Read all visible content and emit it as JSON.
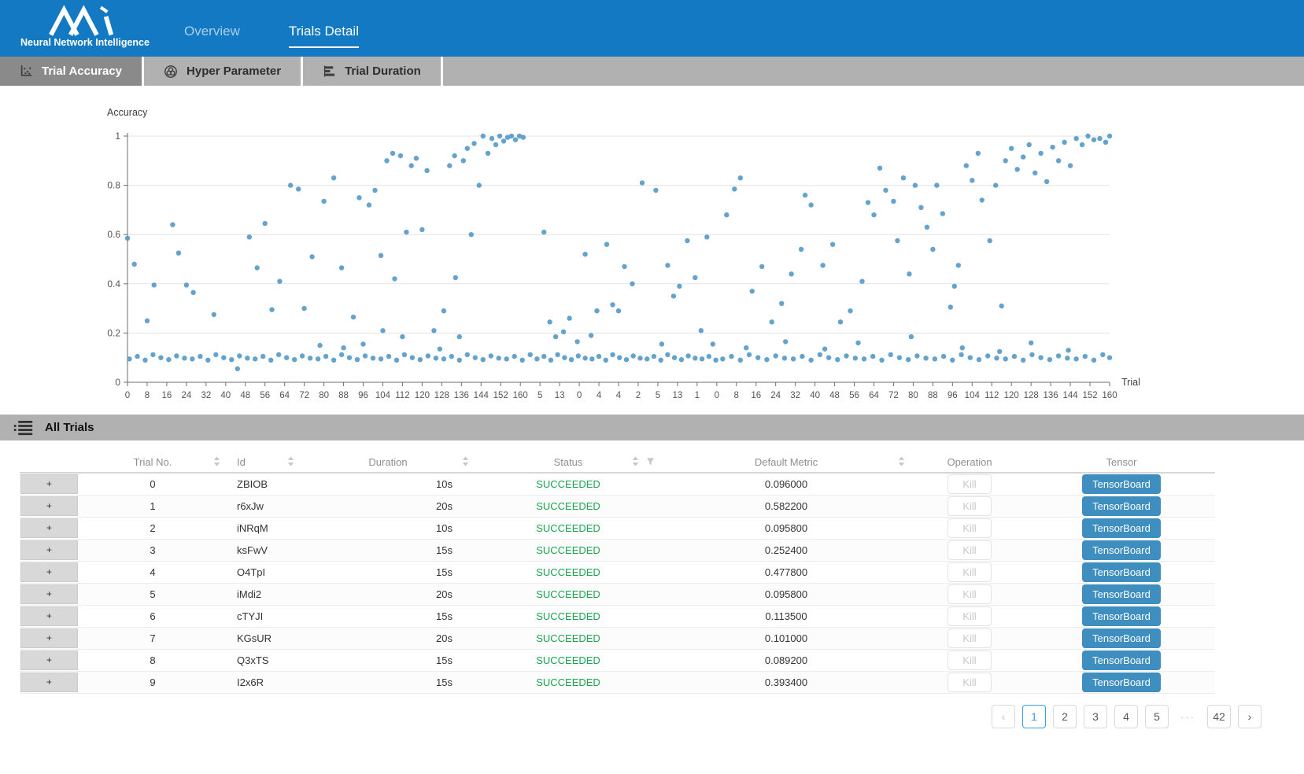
{
  "colors": {
    "header_blue": "#1379C2",
    "subtab_gray": "#B1B1B1",
    "subtab_active_gray": "#8A8A8A",
    "point_blue": "#4D96C7",
    "success_green": "#1CA34F",
    "tensorboard_blue": "#3E8EC0",
    "pagination_active_blue": "#3D9BE9"
  },
  "header": {
    "brand_caption": "Neural Network Intelligence",
    "tabs": [
      {
        "label": "Overview",
        "active": false
      },
      {
        "label": "Trials Detail",
        "active": true
      }
    ]
  },
  "subtabs": [
    {
      "label": "Trial Accuracy",
      "icon": "scatter-icon",
      "active": true
    },
    {
      "label": "Hyper Parameter",
      "icon": "wheel-icon",
      "active": false
    },
    {
      "label": "Trial Duration",
      "icon": "bar-chart-icon",
      "active": false
    }
  ],
  "chart_data": {
    "type": "scatter",
    "ylabel": "Accuracy",
    "xlabel": "Trial",
    "ylim": [
      0,
      1
    ],
    "grid": true,
    "y_ticks": [
      "0",
      "0.2",
      "0.4",
      "0.6",
      "0.8",
      "1"
    ],
    "x_tick_labels": [
      "0",
      "8",
      "16",
      "24",
      "32",
      "40",
      "48",
      "56",
      "64",
      "72",
      "80",
      "88",
      "96",
      "104",
      "112",
      "120",
      "128",
      "136",
      "144",
      "152",
      "160",
      "5",
      "13",
      "0",
      "4",
      "4",
      "2",
      "5",
      "13",
      "1",
      "0",
      "8",
      "16",
      "24",
      "32",
      "40",
      "48",
      "56",
      "64",
      "72",
      "80",
      "88",
      "96",
      "104",
      "112",
      "120",
      "128",
      "136",
      "144",
      "152",
      "160"
    ],
    "point_color": "#4D96C7",
    "points": [
      [
        0.1,
        0.095
      ],
      [
        0.5,
        0.105
      ],
      [
        0.9,
        0.09
      ],
      [
        1.3,
        0.112
      ],
      [
        1.7,
        0.1
      ],
      [
        2.1,
        0.092
      ],
      [
        2.5,
        0.107
      ],
      [
        2.9,
        0.098
      ],
      [
        3.3,
        0.095
      ],
      [
        3.7,
        0.105
      ],
      [
        4.1,
        0.09
      ],
      [
        4.5,
        0.112
      ],
      [
        4.9,
        0.1
      ],
      [
        5.3,
        0.092
      ],
      [
        5.7,
        0.107
      ],
      [
        6.1,
        0.098
      ],
      [
        6.5,
        0.095
      ],
      [
        6.9,
        0.105
      ],
      [
        7.3,
        0.09
      ],
      [
        7.7,
        0.112
      ],
      [
        8.1,
        0.1
      ],
      [
        8.5,
        0.092
      ],
      [
        8.9,
        0.107
      ],
      [
        9.3,
        0.098
      ],
      [
        9.7,
        0.095
      ],
      [
        10.1,
        0.105
      ],
      [
        10.5,
        0.09
      ],
      [
        10.9,
        0.112
      ],
      [
        11.3,
        0.1
      ],
      [
        11.7,
        0.092
      ],
      [
        12.1,
        0.107
      ],
      [
        12.5,
        0.098
      ],
      [
        12.9,
        0.095
      ],
      [
        13.3,
        0.105
      ],
      [
        13.7,
        0.09
      ],
      [
        14.1,
        0.112
      ],
      [
        14.5,
        0.1
      ],
      [
        14.9,
        0.092
      ],
      [
        15.3,
        0.107
      ],
      [
        15.7,
        0.098
      ],
      [
        16.1,
        0.095
      ],
      [
        16.5,
        0.105
      ],
      [
        16.9,
        0.09
      ],
      [
        17.3,
        0.112
      ],
      [
        17.7,
        0.1
      ],
      [
        18.1,
        0.092
      ],
      [
        18.5,
        0.107
      ],
      [
        18.9,
        0.098
      ],
      [
        19.3,
        0.095
      ],
      [
        19.7,
        0.105
      ],
      [
        20.1,
        0.09
      ],
      [
        20.5,
        0.112
      ],
      [
        20.85,
        0.095
      ],
      [
        21.2,
        0.105
      ],
      [
        21.55,
        0.09
      ],
      [
        21.9,
        0.112
      ],
      [
        22.25,
        0.1
      ],
      [
        22.6,
        0.092
      ],
      [
        22.95,
        0.107
      ],
      [
        23.3,
        0.098
      ],
      [
        23.65,
        0.095
      ],
      [
        24.0,
        0.105
      ],
      [
        24.35,
        0.09
      ],
      [
        24.7,
        0.112
      ],
      [
        25.05,
        0.1
      ],
      [
        25.4,
        0.092
      ],
      [
        25.75,
        0.107
      ],
      [
        26.1,
        0.098
      ],
      [
        26.45,
        0.095
      ],
      [
        26.8,
        0.105
      ],
      [
        27.15,
        0.09
      ],
      [
        27.5,
        0.112
      ],
      [
        27.85,
        0.1
      ],
      [
        28.2,
        0.092
      ],
      [
        28.55,
        0.107
      ],
      [
        28.9,
        0.098
      ],
      [
        29.25,
        0.095
      ],
      [
        29.6,
        0.105
      ],
      [
        29.95,
        0.09
      ],
      [
        30.3,
        0.095
      ],
      [
        30.75,
        0.105
      ],
      [
        31.2,
        0.09
      ],
      [
        31.65,
        0.112
      ],
      [
        32.1,
        0.1
      ],
      [
        32.55,
        0.092
      ],
      [
        33.0,
        0.107
      ],
      [
        33.45,
        0.098
      ],
      [
        33.9,
        0.095
      ],
      [
        34.35,
        0.105
      ],
      [
        34.8,
        0.09
      ],
      [
        35.25,
        0.112
      ],
      [
        35.7,
        0.1
      ],
      [
        36.15,
        0.092
      ],
      [
        36.6,
        0.107
      ],
      [
        37.05,
        0.098
      ],
      [
        37.5,
        0.095
      ],
      [
        37.95,
        0.105
      ],
      [
        38.4,
        0.09
      ],
      [
        38.85,
        0.112
      ],
      [
        39.3,
        0.1
      ],
      [
        39.75,
        0.092
      ],
      [
        40.2,
        0.107
      ],
      [
        40.65,
        0.098
      ],
      [
        41.1,
        0.095
      ],
      [
        41.55,
        0.105
      ],
      [
        42.0,
        0.09
      ],
      [
        42.45,
        0.112
      ],
      [
        42.9,
        0.1
      ],
      [
        43.35,
        0.092
      ],
      [
        43.8,
        0.107
      ],
      [
        44.25,
        0.098
      ],
      [
        44.7,
        0.095
      ],
      [
        45.15,
        0.105
      ],
      [
        45.6,
        0.09
      ],
      [
        46.05,
        0.112
      ],
      [
        46.5,
        0.1
      ],
      [
        46.95,
        0.092
      ],
      [
        47.4,
        0.107
      ],
      [
        47.85,
        0.098
      ],
      [
        48.3,
        0.095
      ],
      [
        48.75,
        0.105
      ],
      [
        49.2,
        0.09
      ],
      [
        49.65,
        0.112
      ],
      [
        50.0,
        0.1
      ],
      [
        0.0,
        0.585
      ],
      [
        0.35,
        0.48
      ],
      [
        1.0,
        0.25
      ],
      [
        1.35,
        0.395
      ],
      [
        2.3,
        0.64
      ],
      [
        2.6,
        0.525
      ],
      [
        3.0,
        0.395
      ],
      [
        3.35,
        0.365
      ],
      [
        4.4,
        0.275
      ],
      [
        5.6,
        0.055
      ],
      [
        6.2,
        0.59
      ],
      [
        6.6,
        0.465
      ],
      [
        7.0,
        0.645
      ],
      [
        7.35,
        0.295
      ],
      [
        7.75,
        0.41
      ],
      [
        8.3,
        0.8
      ],
      [
        8.7,
        0.785
      ],
      [
        9.0,
        0.3
      ],
      [
        9.4,
        0.51
      ],
      [
        9.8,
        0.15
      ],
      [
        10.0,
        0.735
      ],
      [
        10.5,
        0.83
      ],
      [
        10.9,
        0.465
      ],
      [
        11.0,
        0.14
      ],
      [
        11.5,
        0.265
      ],
      [
        11.8,
        0.75
      ],
      [
        12.0,
        0.155
      ],
      [
        12.3,
        0.72
      ],
      [
        12.6,
        0.78
      ],
      [
        12.9,
        0.515
      ],
      [
        13.0,
        0.21
      ],
      [
        13.2,
        0.9
      ],
      [
        13.5,
        0.93
      ],
      [
        13.6,
        0.42
      ],
      [
        13.9,
        0.92
      ],
      [
        14.0,
        0.185
      ],
      [
        14.2,
        0.61
      ],
      [
        14.45,
        0.88
      ],
      [
        14.7,
        0.91
      ],
      [
        15.0,
        0.62
      ],
      [
        15.25,
        0.86
      ],
      [
        15.6,
        0.21
      ],
      [
        15.9,
        0.135
      ],
      [
        16.1,
        0.29
      ],
      [
        16.4,
        0.88
      ],
      [
        16.65,
        0.92
      ],
      [
        16.7,
        0.425
      ],
      [
        16.9,
        0.185
      ],
      [
        17.1,
        0.9
      ],
      [
        17.3,
        0.95
      ],
      [
        17.5,
        0.6
      ],
      [
        17.65,
        0.97
      ],
      [
        17.9,
        0.8
      ],
      [
        18.1,
        1.0
      ],
      [
        18.35,
        0.93
      ],
      [
        18.55,
        0.99
      ],
      [
        18.75,
        0.965
      ],
      [
        18.95,
        1.0
      ],
      [
        19.15,
        0.98
      ],
      [
        19.35,
        0.995
      ],
      [
        19.55,
        1.0
      ],
      [
        19.75,
        0.985
      ],
      [
        19.95,
        1.0
      ],
      [
        20.15,
        0.995
      ],
      [
        21.2,
        0.61
      ],
      [
        21.5,
        0.245
      ],
      [
        21.8,
        0.185
      ],
      [
        22.2,
        0.205
      ],
      [
        22.5,
        0.26
      ],
      [
        22.9,
        0.165
      ],
      [
        23.3,
        0.52
      ],
      [
        23.6,
        0.19
      ],
      [
        23.9,
        0.29
      ],
      [
        24.4,
        0.56
      ],
      [
        24.7,
        0.315
      ],
      [
        25.0,
        0.29
      ],
      [
        25.3,
        0.47
      ],
      [
        25.7,
        0.4
      ],
      [
        26.2,
        0.81
      ],
      [
        26.9,
        0.78
      ],
      [
        27.2,
        0.155
      ],
      [
        27.5,
        0.475
      ],
      [
        27.8,
        0.35
      ],
      [
        28.1,
        0.39
      ],
      [
        28.5,
        0.575
      ],
      [
        28.9,
        0.425
      ],
      [
        29.2,
        0.21
      ],
      [
        29.5,
        0.59
      ],
      [
        29.8,
        0.155
      ],
      [
        30.5,
        0.68
      ],
      [
        30.9,
        0.785
      ],
      [
        31.2,
        0.83
      ],
      [
        31.5,
        0.14
      ],
      [
        31.8,
        0.37
      ],
      [
        32.3,
        0.47
      ],
      [
        32.8,
        0.245
      ],
      [
        33.3,
        0.32
      ],
      [
        33.5,
        0.165
      ],
      [
        33.8,
        0.44
      ],
      [
        34.3,
        0.54
      ],
      [
        34.5,
        0.76
      ],
      [
        34.8,
        0.72
      ],
      [
        35.4,
        0.475
      ],
      [
        35.5,
        0.135
      ],
      [
        35.9,
        0.56
      ],
      [
        36.3,
        0.245
      ],
      [
        36.8,
        0.29
      ],
      [
        37.2,
        0.16
      ],
      [
        37.4,
        0.41
      ],
      [
        37.7,
        0.73
      ],
      [
        38.0,
        0.68
      ],
      [
        38.3,
        0.87
      ],
      [
        38.6,
        0.78
      ],
      [
        39.0,
        0.735
      ],
      [
        39.2,
        0.575
      ],
      [
        39.5,
        0.83
      ],
      [
        39.8,
        0.44
      ],
      [
        39.9,
        0.185
      ],
      [
        40.1,
        0.8
      ],
      [
        40.4,
        0.71
      ],
      [
        40.7,
        0.63
      ],
      [
        41.0,
        0.54
      ],
      [
        41.2,
        0.8
      ],
      [
        41.5,
        0.685
      ],
      [
        41.9,
        0.305
      ],
      [
        42.1,
        0.39
      ],
      [
        42.3,
        0.475
      ],
      [
        42.5,
        0.14
      ],
      [
        42.7,
        0.88
      ],
      [
        43.0,
        0.82
      ],
      [
        43.3,
        0.93
      ],
      [
        43.5,
        0.74
      ],
      [
        43.9,
        0.575
      ],
      [
        44.2,
        0.8
      ],
      [
        44.4,
        0.125
      ],
      [
        44.5,
        0.31
      ],
      [
        44.7,
        0.9
      ],
      [
        45.0,
        0.95
      ],
      [
        45.3,
        0.865
      ],
      [
        45.6,
        0.915
      ],
      [
        45.9,
        0.965
      ],
      [
        46.0,
        0.16
      ],
      [
        46.2,
        0.85
      ],
      [
        46.5,
        0.93
      ],
      [
        46.8,
        0.815
      ],
      [
        47.1,
        0.955
      ],
      [
        47.4,
        0.9
      ],
      [
        47.7,
        0.975
      ],
      [
        47.9,
        0.13
      ],
      [
        48.0,
        0.88
      ],
      [
        48.3,
        0.99
      ],
      [
        48.6,
        0.965
      ],
      [
        48.9,
        1.0
      ],
      [
        49.2,
        0.985
      ],
      [
        49.5,
        0.99
      ],
      [
        49.8,
        0.975
      ],
      [
        50.0,
        1.0
      ]
    ]
  },
  "table": {
    "title": "All Trials",
    "expand_symbol": "+",
    "kill_label": "Kill",
    "tensorboard_label": "TensorBoard",
    "columns": [
      {
        "label": "Trial No.",
        "sort": true,
        "filter": false
      },
      {
        "label": "Id",
        "sort": true,
        "filter": false
      },
      {
        "label": "Duration",
        "sort": true,
        "filter": false
      },
      {
        "label": "Status",
        "sort": true,
        "filter": true
      },
      {
        "label": "Default Metric",
        "sort": true,
        "filter": false
      },
      {
        "label": "Operation",
        "sort": false,
        "filter": false
      },
      {
        "label": "Tensor",
        "sort": false,
        "filter": false
      }
    ],
    "rows": [
      {
        "trial_no": "0",
        "id": "ZBIOB",
        "duration": "10s",
        "status": "SUCCEEDED",
        "default_metric": "0.096000"
      },
      {
        "trial_no": "1",
        "id": "r6xJw",
        "duration": "20s",
        "status": "SUCCEEDED",
        "default_metric": "0.582200"
      },
      {
        "trial_no": "2",
        "id": "iNRqM",
        "duration": "10s",
        "status": "SUCCEEDED",
        "default_metric": "0.095800"
      },
      {
        "trial_no": "3",
        "id": "ksFwV",
        "duration": "15s",
        "status": "SUCCEEDED",
        "default_metric": "0.252400"
      },
      {
        "trial_no": "4",
        "id": "O4TpI",
        "duration": "15s",
        "status": "SUCCEEDED",
        "default_metric": "0.477800"
      },
      {
        "trial_no": "5",
        "id": "iMdi2",
        "duration": "20s",
        "status": "SUCCEEDED",
        "default_metric": "0.095800"
      },
      {
        "trial_no": "6",
        "id": "cTYJI",
        "duration": "15s",
        "status": "SUCCEEDED",
        "default_metric": "0.113500"
      },
      {
        "trial_no": "7",
        "id": "KGsUR",
        "duration": "20s",
        "status": "SUCCEEDED",
        "default_metric": "0.101000"
      },
      {
        "trial_no": "8",
        "id": "Q3xTS",
        "duration": "15s",
        "status": "SUCCEEDED",
        "default_metric": "0.089200"
      },
      {
        "trial_no": "9",
        "id": "I2x6R",
        "duration": "15s",
        "status": "SUCCEEDED",
        "default_metric": "0.393400"
      }
    ]
  },
  "pagination": {
    "active": "1",
    "items": [
      {
        "label": "‹",
        "name": "prev",
        "disabled": true
      },
      {
        "label": "1",
        "name": "page-1",
        "active": true
      },
      {
        "label": "2",
        "name": "page-2"
      },
      {
        "label": "3",
        "name": "page-3"
      },
      {
        "label": "4",
        "name": "page-4"
      },
      {
        "label": "5",
        "name": "page-5"
      },
      {
        "label": "···",
        "name": "ellipsis"
      },
      {
        "label": "42",
        "name": "page-42"
      },
      {
        "label": "›",
        "name": "next"
      }
    ]
  }
}
